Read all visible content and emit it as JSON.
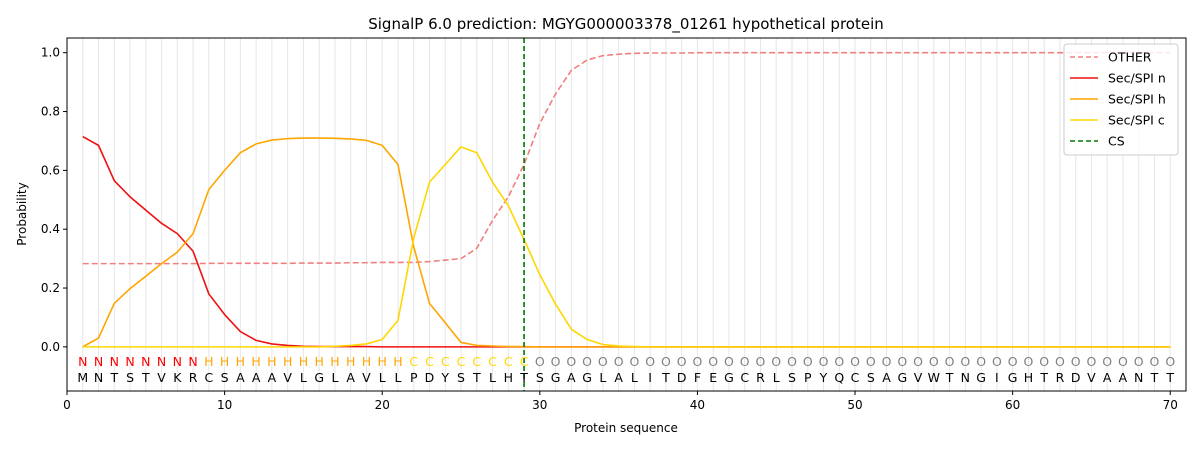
{
  "chart_data": {
    "type": "line",
    "title": "SignalP 6.0 prediction: MGYG000003378_01261 hypothetical protein",
    "xlabel": "Protein sequence",
    "ylabel": "Probability",
    "xlim": [
      0,
      71
    ],
    "ylim": [
      -0.15,
      1.05
    ],
    "x_ticks": [
      0,
      10,
      20,
      30,
      40,
      50,
      60,
      70
    ],
    "y_ticks": [
      0.0,
      0.2,
      0.4,
      0.6,
      0.8,
      1.0
    ],
    "x_tick_labels": [
      "0",
      "10",
      "20",
      "30",
      "40",
      "50",
      "60",
      "70"
    ],
    "y_tick_labels": [
      "0.0",
      "0.2",
      "0.4",
      "0.6",
      "0.8",
      "1.0"
    ],
    "grid": "vertical lines at each residue",
    "legend_position": "top-right",
    "sequence": [
      "M",
      "N",
      "T",
      "S",
      "T",
      "V",
      "K",
      "R",
      "C",
      "S",
      "A",
      "A",
      "A",
      "V",
      "L",
      "G",
      "L",
      "A",
      "V",
      "L",
      "L",
      "P",
      "D",
      "Y",
      "S",
      "T",
      "L",
      "H",
      "T",
      "S",
      "G",
      "A",
      "G",
      "L",
      "A",
      "L",
      "I",
      "T",
      "D",
      "F",
      "E",
      "G",
      "C",
      "R",
      "L",
      "S",
      "P",
      "Y",
      "Q",
      "C",
      "S",
      "A",
      "G",
      "V",
      "W",
      "T",
      "N",
      "G",
      "I",
      "G",
      "H",
      "T",
      "R",
      "D",
      "V",
      "A",
      "A",
      "N",
      "T",
      "T"
    ],
    "labels": [
      "N",
      "N",
      "N",
      "N",
      "N",
      "N",
      "N",
      "N",
      "H",
      "H",
      "H",
      "H",
      "H",
      "H",
      "H",
      "H",
      "H",
      "H",
      "H",
      "H",
      "H",
      "C",
      "C",
      "C",
      "C",
      "C",
      "C",
      "C",
      "C",
      "O",
      "O",
      "O",
      "O",
      "O",
      "O",
      "O",
      "O",
      "O",
      "O",
      "O",
      "O",
      "O",
      "O",
      "O",
      "O",
      "O",
      "O",
      "O",
      "O",
      "O",
      "O",
      "O",
      "O",
      "O",
      "O",
      "O",
      "O",
      "O",
      "O",
      "O",
      "O",
      "O",
      "O",
      "O",
      "O",
      "O",
      "O",
      "O",
      "O",
      "O"
    ],
    "label_colors": {
      "N": "#ff0000",
      "H": "#ffa500",
      "C": "#ffd700",
      "O": "#808080"
    },
    "cleavage_site": 29,
    "series": [
      {
        "name": "OTHER",
        "color": "#f08080",
        "dash": true,
        "values": [
          0.283,
          0.283,
          0.283,
          0.283,
          0.283,
          0.283,
          0.283,
          0.283,
          0.284,
          0.284,
          0.284,
          0.284,
          0.284,
          0.284,
          0.285,
          0.285,
          0.285,
          0.286,
          0.286,
          0.287,
          0.287,
          0.287,
          0.29,
          0.295,
          0.3,
          0.335,
          0.43,
          0.51,
          0.62,
          0.76,
          0.86,
          0.94,
          0.975,
          0.99,
          0.995,
          0.998,
          0.999,
          0.999,
          0.999,
          1.0,
          1.0,
          1.0,
          1.0,
          1.0,
          1.0,
          1.0,
          1.0,
          1.0,
          1.0,
          1.0,
          1.0,
          1.0,
          1.0,
          1.0,
          1.0,
          1.0,
          1.0,
          1.0,
          1.0,
          1.0,
          1.0,
          1.0,
          1.0,
          1.0,
          1.0,
          1.0,
          1.0,
          1.0,
          1.0,
          1.0
        ]
      },
      {
        "name": "Sec/SPI n",
        "color": "#ee1111",
        "dash": false,
        "values": [
          0.715,
          0.685,
          0.565,
          0.51,
          0.465,
          0.42,
          0.385,
          0.325,
          0.18,
          0.11,
          0.052,
          0.022,
          0.01,
          0.005,
          0.002,
          0.001,
          0.001,
          0.001,
          0.001,
          0,
          0,
          0,
          0,
          0,
          0,
          0,
          0,
          0,
          0,
          0,
          0,
          0,
          0,
          0,
          0,
          0,
          0,
          0,
          0,
          0,
          0,
          0,
          0,
          0,
          0,
          0,
          0,
          0,
          0,
          0,
          0,
          0,
          0,
          0,
          0,
          0,
          0,
          0,
          0,
          0,
          0,
          0,
          0,
          0,
          0,
          0,
          0,
          0,
          0,
          0
        ]
      },
      {
        "name": "Sec/SPI h",
        "color": "#ffa500",
        "dash": false,
        "values": [
          0.0,
          0.03,
          0.148,
          0.198,
          0.24,
          0.283,
          0.322,
          0.385,
          0.535,
          0.6,
          0.66,
          0.69,
          0.703,
          0.708,
          0.71,
          0.71,
          0.709,
          0.707,
          0.702,
          0.685,
          0.62,
          0.34,
          0.148,
          0.082,
          0.015,
          0.005,
          0.003,
          0.001,
          0.001,
          0,
          0,
          0,
          0,
          0,
          0,
          0,
          0,
          0,
          0,
          0,
          0,
          0,
          0,
          0,
          0,
          0,
          0,
          0,
          0,
          0,
          0,
          0,
          0,
          0,
          0,
          0,
          0,
          0,
          0,
          0,
          0,
          0,
          0,
          0,
          0,
          0,
          0,
          0,
          0,
          0
        ]
      },
      {
        "name": "Sec/SPI c",
        "color": "#ffd700",
        "dash": false,
        "values": [
          0,
          0,
          0,
          0,
          0,
          0,
          0,
          0,
          0,
          0,
          0,
          0,
          0,
          0,
          0,
          0,
          0.002,
          0.005,
          0.01,
          0.025,
          0.09,
          0.37,
          0.56,
          0.62,
          0.68,
          0.66,
          0.56,
          0.48,
          0.365,
          0.245,
          0.145,
          0.06,
          0.025,
          0.008,
          0.003,
          0.001,
          0,
          0,
          0,
          0,
          0,
          0,
          0,
          0,
          0,
          0,
          0,
          0,
          0,
          0,
          0,
          0,
          0,
          0,
          0,
          0,
          0,
          0,
          0,
          0,
          0,
          0,
          0,
          0,
          0,
          0,
          0,
          0,
          0,
          0
        ]
      }
    ],
    "legend": [
      "OTHER",
      "Sec/SPI n",
      "Sec/SPI h",
      "Sec/SPI c",
      "CS"
    ],
    "cs_color": "#007700"
  }
}
